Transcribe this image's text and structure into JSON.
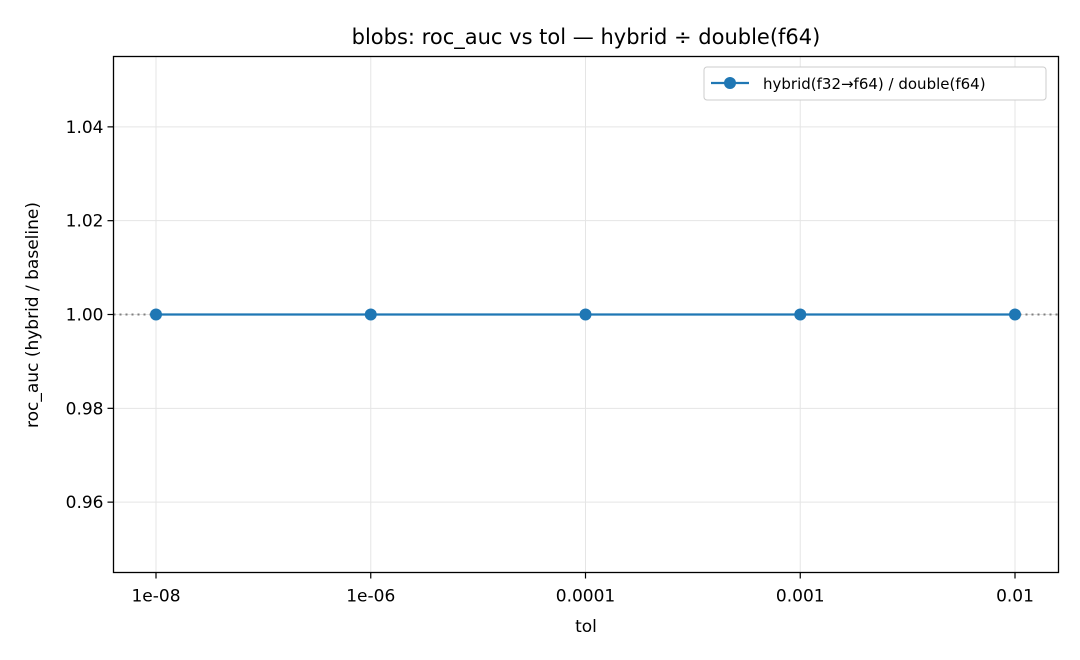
{
  "chart_data": {
    "type": "line",
    "title": "blobs: roc_auc vs tol — hybrid ÷ double(f64)",
    "xlabel": "tol",
    "ylabel": "roc_auc (hybrid / baseline)",
    "categories": [
      "1e-08",
      "1e-06",
      "0.0001",
      "0.001",
      "0.01"
    ],
    "series": [
      {
        "name": "hybrid(f32→f64) / double(f64)",
        "values": [
          1.0,
          1.0,
          1.0,
          1.0,
          1.0
        ],
        "color": "#1f77b4",
        "marker": "circle"
      }
    ],
    "reference_line": {
      "y": 1.0,
      "style": "dotted",
      "color": "#808080"
    },
    "ylim": [
      0.945,
      1.055
    ],
    "yticks": [
      0.96,
      0.98,
      1.0,
      1.02,
      1.04
    ],
    "ytick_labels": [
      "0.96",
      "0.98",
      "1.00",
      "1.02",
      "1.04"
    ],
    "grid": true,
    "legend_position": "top-right"
  }
}
